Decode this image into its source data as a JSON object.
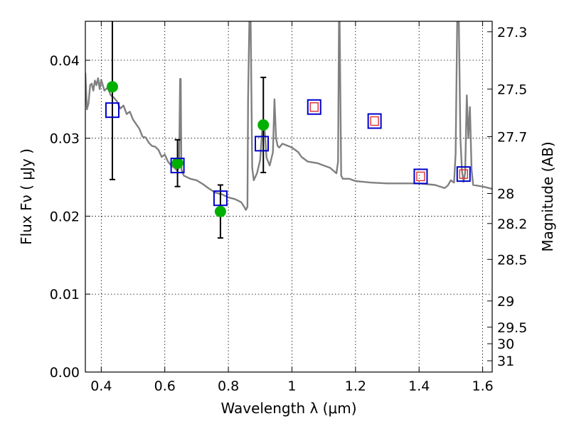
{
  "chart_data": {
    "type": "scatter",
    "title": "",
    "xlabel": "Wavelength  λ (μm)",
    "ylabel": "Flux  Fν  ( μJy )",
    "ylabel_right": "Magnitude (AB)",
    "xlim": [
      0.35,
      1.63
    ],
    "ylim": [
      0.0,
      0.045
    ],
    "grid": true,
    "legend": "none",
    "x_ticks": [
      {
        "value": 0.4,
        "label": "0.4"
      },
      {
        "value": 0.6,
        "label": "0.6"
      },
      {
        "value": 0.8,
        "label": "0.8"
      },
      {
        "value": 1.0,
        "label": "1"
      },
      {
        "value": 1.2,
        "label": "1.2"
      },
      {
        "value": 1.4,
        "label": "1.4"
      },
      {
        "value": 1.6,
        "label": "1.6"
      }
    ],
    "y_ticks": [
      {
        "value": 0.0,
        "label": "0.00"
      },
      {
        "value": 0.01,
        "label": "0.01"
      },
      {
        "value": 0.02,
        "label": "0.02"
      },
      {
        "value": 0.03,
        "label": "0.03"
      },
      {
        "value": 0.04,
        "label": "0.04"
      }
    ],
    "right_ticks": [
      {
        "value": 27.3,
        "label": "27.3"
      },
      {
        "value": 27.5,
        "label": "27.5"
      },
      {
        "value": 27.7,
        "label": "27.7"
      },
      {
        "value": 28.0,
        "label": "28"
      },
      {
        "value": 28.2,
        "label": "28.2"
      },
      {
        "value": 28.5,
        "label": "28.5"
      },
      {
        "value": 29.0,
        "label": "29"
      },
      {
        "value": 29.5,
        "label": "29.5"
      },
      {
        "value": 30.0,
        "label": "30"
      },
      {
        "value": 31.0,
        "label": "31"
      }
    ],
    "observed": [
      {
        "x": 0.435,
        "y": 0.0366,
        "yerr_low": 0.0247,
        "yerr_high": 0.045
      },
      {
        "x": 0.64,
        "y": 0.0268,
        "yerr_low": 0.0238,
        "yerr_high": 0.0298
      },
      {
        "x": 0.775,
        "y": 0.0206,
        "yerr_low": 0.0172,
        "yerr_high": 0.024
      },
      {
        "x": 0.91,
        "y": 0.0317,
        "yerr_low": 0.0256,
        "yerr_high": 0.0378
      }
    ],
    "model_points": [
      {
        "x": 0.435,
        "y": 0.0336
      },
      {
        "x": 0.64,
        "y": 0.0265
      },
      {
        "x": 0.775,
        "y": 0.0223
      },
      {
        "x": 0.905,
        "y": 0.0293
      },
      {
        "x": 1.07,
        "y": 0.034
      },
      {
        "x": 1.26,
        "y": 0.0322
      },
      {
        "x": 1.405,
        "y": 0.0251
      },
      {
        "x": 1.54,
        "y": 0.0254
      }
    ],
    "predicted_points": [
      {
        "x": 1.07,
        "y": 0.034
      },
      {
        "x": 1.26,
        "y": 0.0322
      },
      {
        "x": 1.405,
        "y": 0.0251
      },
      {
        "x": 1.54,
        "y": 0.0254
      }
    ],
    "sed_curve": {
      "x": [
        0.35,
        0.355,
        0.36,
        0.365,
        0.37,
        0.375,
        0.38,
        0.385,
        0.39,
        0.395,
        0.4,
        0.41,
        0.42,
        0.43,
        0.44,
        0.45,
        0.46,
        0.47,
        0.48,
        0.49,
        0.5,
        0.51,
        0.52,
        0.53,
        0.54,
        0.55,
        0.56,
        0.57,
        0.58,
        0.59,
        0.6,
        0.61,
        0.62,
        0.63,
        0.64,
        0.645,
        0.648,
        0.65,
        0.652,
        0.655,
        0.66,
        0.68,
        0.7,
        0.72,
        0.74,
        0.76,
        0.78,
        0.8,
        0.82,
        0.84,
        0.85,
        0.855,
        0.86,
        0.862,
        0.866,
        0.87,
        0.875,
        0.88,
        0.89,
        0.9,
        0.905,
        0.908,
        0.91,
        0.913,
        0.916,
        0.92,
        0.93,
        0.94,
        0.945,
        0.95,
        0.955,
        0.96,
        0.97,
        1.0,
        1.02,
        1.03,
        1.05,
        1.08,
        1.1,
        1.12,
        1.14,
        1.145,
        1.148,
        1.15,
        1.155,
        1.16,
        1.18,
        1.2,
        1.25,
        1.3,
        1.35,
        1.4,
        1.45,
        1.48,
        1.49,
        1.5,
        1.51,
        1.515,
        1.52,
        1.525,
        1.53,
        1.535,
        1.54,
        1.545,
        1.55,
        1.555,
        1.56,
        1.565,
        1.57,
        1.6,
        1.63
      ],
      "y": [
        0.0384,
        0.0337,
        0.0345,
        0.0368,
        0.037,
        0.0361,
        0.0374,
        0.0368,
        0.0377,
        0.0363,
        0.0375,
        0.0361,
        0.0365,
        0.0355,
        0.0352,
        0.0347,
        0.0338,
        0.0342,
        0.0331,
        0.0334,
        0.0324,
        0.0318,
        0.0312,
        0.0302,
        0.0301,
        0.0294,
        0.029,
        0.0289,
        0.0285,
        0.0276,
        0.0279,
        0.027,
        0.0265,
        0.0262,
        0.0258,
        0.0265,
        0.0376,
        0.0376,
        0.026,
        0.0257,
        0.0252,
        0.0248,
        0.0246,
        0.0241,
        0.0235,
        0.023,
        0.0228,
        0.0224,
        0.0222,
        0.0218,
        0.0212,
        0.0208,
        0.0212,
        0.035,
        0.045,
        0.045,
        0.0262,
        0.0246,
        0.0255,
        0.0272,
        0.0302,
        0.032,
        0.0304,
        0.0315,
        0.03,
        0.0275,
        0.0265,
        0.0282,
        0.035,
        0.03,
        0.029,
        0.0288,
        0.0293,
        0.0288,
        0.0282,
        0.0276,
        0.027,
        0.0268,
        0.0265,
        0.0262,
        0.0255,
        0.027,
        0.045,
        0.045,
        0.0252,
        0.0248,
        0.0248,
        0.0245,
        0.0243,
        0.0242,
        0.0242,
        0.0242,
        0.024,
        0.0236,
        0.0239,
        0.0246,
        0.0243,
        0.028,
        0.045,
        0.045,
        0.03,
        0.0258,
        0.0244,
        0.0256,
        0.0355,
        0.03,
        0.034,
        0.026,
        0.024,
        0.0238,
        0.0235
      ]
    }
  }
}
